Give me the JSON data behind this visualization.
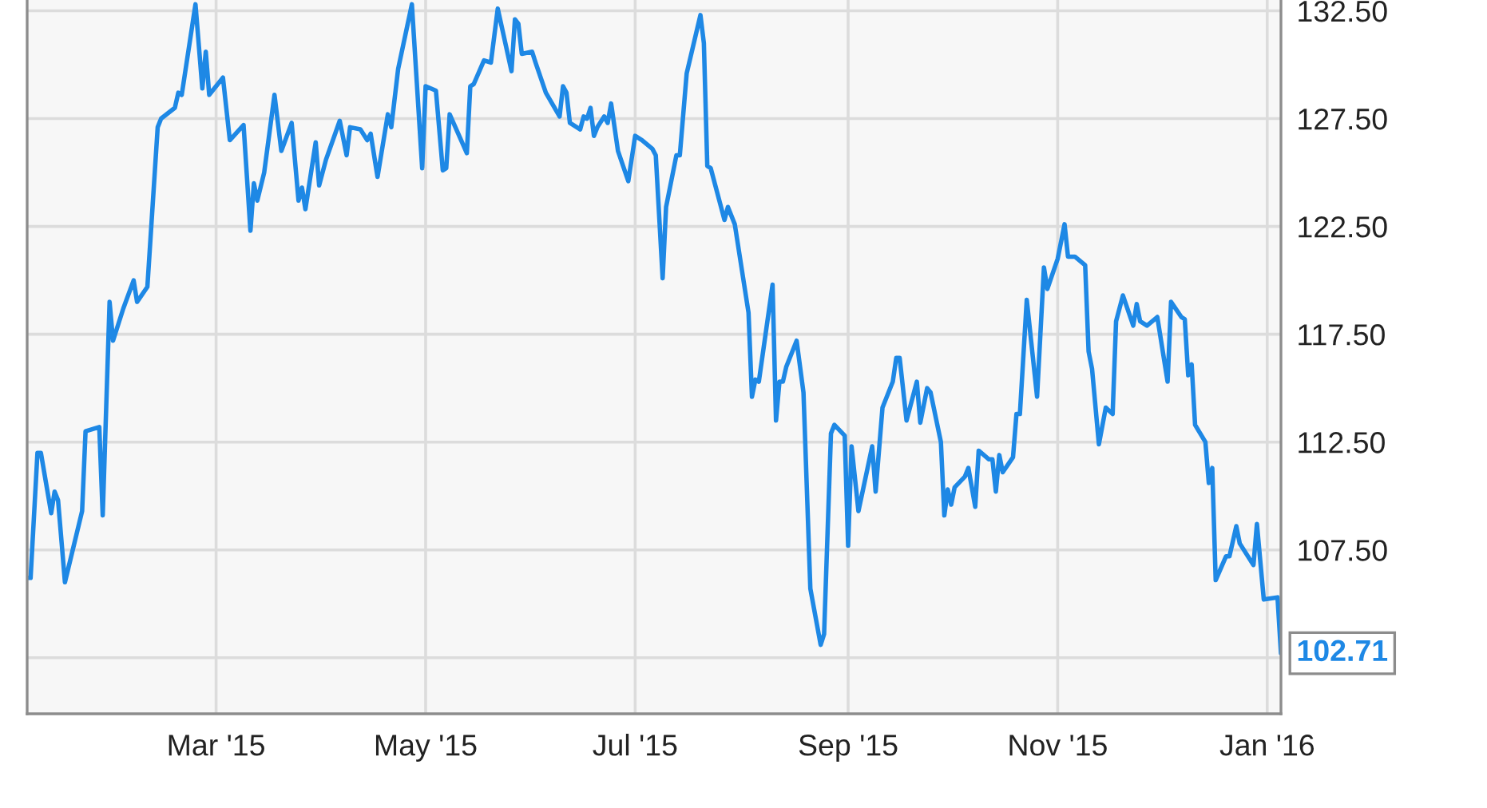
{
  "chart_data": {
    "type": "line",
    "x": [
      "2015-01-05",
      "2015-01-06",
      "2015-01-08",
      "2015-01-09",
      "2015-01-12",
      "2015-01-13",
      "2015-01-14",
      "2015-01-16",
      "2015-01-21",
      "2015-01-22",
      "2015-01-26",
      "2015-01-27",
      "2015-01-29",
      "2015-01-30",
      "2015-02-02",
      "2015-02-05",
      "2015-02-06",
      "2015-02-09",
      "2015-02-12",
      "2015-02-13",
      "2015-02-17",
      "2015-02-18",
      "2015-02-19",
      "2015-02-23",
      "2015-02-25",
      "2015-02-26",
      "2015-02-27",
      "2015-03-03",
      "2015-03-05",
      "2015-03-09",
      "2015-03-11",
      "2015-03-12",
      "2015-03-13",
      "2015-03-15",
      "2015-03-18",
      "2015-03-20",
      "2015-03-23",
      "2015-03-25",
      "2015-03-26",
      "2015-03-27",
      "2015-03-30",
      "2015-03-31",
      "2015-04-02",
      "2015-04-06",
      "2015-04-08",
      "2015-04-09",
      "2015-04-12",
      "2015-04-14",
      "2015-04-15",
      "2015-04-17",
      "2015-04-20",
      "2015-04-21",
      "2015-04-23",
      "2015-04-27",
      "2015-04-30",
      "2015-05-01",
      "2015-05-04",
      "2015-05-06",
      "2015-05-07",
      "2015-05-08",
      "2015-05-13",
      "2015-05-14",
      "2015-05-15",
      "2015-05-18",
      "2015-05-20",
      "2015-05-22",
      "2015-05-26",
      "2015-05-27",
      "2015-05-28",
      "2015-05-29",
      "2015-06-01",
      "2015-06-02",
      "2015-06-05",
      "2015-06-09",
      "2015-06-10",
      "2015-06-11",
      "2015-06-12",
      "2015-06-15",
      "2015-06-16",
      "2015-06-17",
      "2015-06-18",
      "2015-06-19",
      "2015-06-20",
      "2015-06-22",
      "2015-06-23",
      "2015-06-24",
      "2015-06-26",
      "2015-06-29",
      "2015-07-01",
      "2015-07-03",
      "2015-07-06",
      "2015-07-07",
      "2015-07-09",
      "2015-07-10",
      "2015-07-13",
      "2015-07-14",
      "2015-07-16",
      "2015-07-20",
      "2015-07-21",
      "2015-07-22",
      "2015-07-23",
      "2015-07-27",
      "2015-07-28",
      "2015-07-30",
      "2015-08-03",
      "2015-08-04",
      "2015-08-05",
      "2015-08-06",
      "2015-08-10",
      "2015-08-11",
      "2015-08-12",
      "2015-08-13",
      "2015-08-14",
      "2015-08-17",
      "2015-08-19",
      "2015-08-21",
      "2015-08-24",
      "2015-08-25",
      "2015-08-27",
      "2015-08-28",
      "2015-08-31",
      "2015-09-01",
      "2015-09-02",
      "2015-09-04",
      "2015-09-08",
      "2015-09-09",
      "2015-09-11",
      "2015-09-14",
      "2015-09-15",
      "2015-09-16",
      "2015-09-18",
      "2015-09-21",
      "2015-09-22",
      "2015-09-24",
      "2015-09-25",
      "2015-09-28",
      "2015-09-29",
      "2015-09-30",
      "2015-10-01",
      "2015-10-02",
      "2015-10-05",
      "2015-10-06",
      "2015-10-08",
      "2015-10-09",
      "2015-10-12",
      "2015-10-13",
      "2015-10-14",
      "2015-10-15",
      "2015-10-16",
      "2015-10-19",
      "2015-10-20",
      "2015-10-21",
      "2015-10-23",
      "2015-10-26",
      "2015-10-28",
      "2015-10-29",
      "2015-11-01",
      "2015-11-03",
      "2015-11-04",
      "2015-11-06",
      "2015-11-09",
      "2015-11-10",
      "2015-11-11",
      "2015-11-13",
      "2015-11-15",
      "2015-11-17",
      "2015-11-18",
      "2015-11-20",
      "2015-11-23",
      "2015-11-24",
      "2015-11-25",
      "2015-11-27",
      "2015-11-30",
      "2015-12-03",
      "2015-12-04",
      "2015-12-07",
      "2015-12-08",
      "2015-12-09",
      "2015-12-10",
      "2015-12-11",
      "2015-12-14",
      "2015-12-15",
      "2015-12-16",
      "2015-12-17",
      "2015-12-20",
      "2015-12-21",
      "2015-12-23",
      "2015-12-24",
      "2015-12-28",
      "2015-12-29",
      "2015-12-31",
      "2016-01-04",
      "2016-01-05"
    ],
    "series": [
      {
        "color": "#1e88e5",
        "values": [
          106.2,
          106.2,
          112.0,
          112.0,
          109.2,
          110.2,
          109.8,
          106.0,
          109.3,
          113.0,
          113.2,
          109.1,
          119.0,
          117.2,
          118.7,
          120.0,
          119.0,
          119.7,
          127.1,
          127.5,
          128.0,
          128.7,
          128.6,
          132.8,
          128.9,
          130.6,
          128.6,
          129.4,
          126.5,
          127.2,
          122.3,
          124.5,
          123.7,
          125.0,
          128.6,
          126.0,
          127.3,
          123.7,
          124.3,
          123.3,
          126.4,
          124.4,
          125.6,
          127.4,
          125.8,
          127.1,
          127.0,
          126.5,
          126.8,
          124.8,
          127.7,
          127.1,
          129.8,
          132.8,
          125.2,
          129.0,
          128.8,
          125.1,
          125.2,
          127.7,
          125.9,
          129.0,
          129.1,
          130.2,
          130.1,
          132.6,
          129.7,
          132.1,
          131.9,
          130.5,
          130.6,
          130.1,
          128.7,
          127.6,
          129.0,
          128.7,
          127.3,
          127.0,
          127.6,
          127.5,
          128.0,
          126.7,
          127.1,
          127.6,
          127.3,
          128.2,
          126.0,
          124.6,
          126.7,
          126.5,
          126.1,
          125.8,
          120.1,
          123.4,
          125.8,
          125.8,
          129.6,
          132.3,
          131.0,
          125.3,
          125.2,
          122.8,
          123.4,
          122.6,
          118.5,
          114.6,
          115.4,
          115.3,
          119.8,
          113.5,
          115.3,
          115.3,
          116.0,
          117.2,
          114.8,
          105.7,
          103.1,
          103.6,
          112.9,
          113.3,
          112.8,
          107.7,
          112.3,
          109.3,
          112.3,
          110.2,
          114.1,
          115.3,
          116.4,
          116.4,
          113.5,
          115.3,
          113.4,
          115.0,
          114.8,
          112.5,
          109.1,
          110.3,
          109.6,
          110.4,
          110.9,
          111.3,
          109.5,
          112.1,
          111.7,
          111.7,
          110.2,
          111.9,
          111.1,
          111.8,
          113.8,
          113.8,
          119.1,
          114.6,
          120.6,
          119.6,
          121.0,
          122.6,
          121.1,
          121.1,
          120.7,
          116.7,
          115.9,
          112.4,
          114.1,
          113.8,
          118.1,
          119.3,
          117.9,
          118.9,
          118.1,
          117.9,
          118.3,
          115.3,
          119.0,
          118.3,
          118.2,
          115.6,
          116.1,
          113.3,
          112.5,
          110.6,
          111.3,
          106.1,
          107.2,
          107.2,
          108.6,
          107.8,
          106.8,
          108.7,
          105.2,
          105.3,
          102.71
        ]
      }
    ],
    "xlim": [
      "2015-01-05",
      "2016-01-05"
    ],
    "xticks": [
      {
        "value": "2015-03-01",
        "label": "Mar '15"
      },
      {
        "value": "2015-05-01",
        "label": "May '15"
      },
      {
        "value": "2015-07-01",
        "label": "Jul '15"
      },
      {
        "value": "2015-09-01",
        "label": "Sep '15"
      },
      {
        "value": "2015-11-01",
        "label": "Nov '15"
      },
      {
        "value": "2016-01-01",
        "label": "Jan '16"
      }
    ],
    "ylim": [
      99.9,
      133.0
    ],
    "yticks": [
      {
        "value": 102.5,
        "label": null
      },
      {
        "value": 107.5,
        "label": "107.50"
      },
      {
        "value": 112.5,
        "label": "112.50"
      },
      {
        "value": 117.5,
        "label": "117.50"
      },
      {
        "value": 122.5,
        "label": "122.50"
      },
      {
        "value": 127.5,
        "label": "127.50"
      },
      {
        "value": 132.5,
        "label": "132.50"
      }
    ],
    "grid": true,
    "annotations": [
      {
        "text": "102.71",
        "x": "2016-01-05",
        "y": 102.71
      }
    ]
  }
}
